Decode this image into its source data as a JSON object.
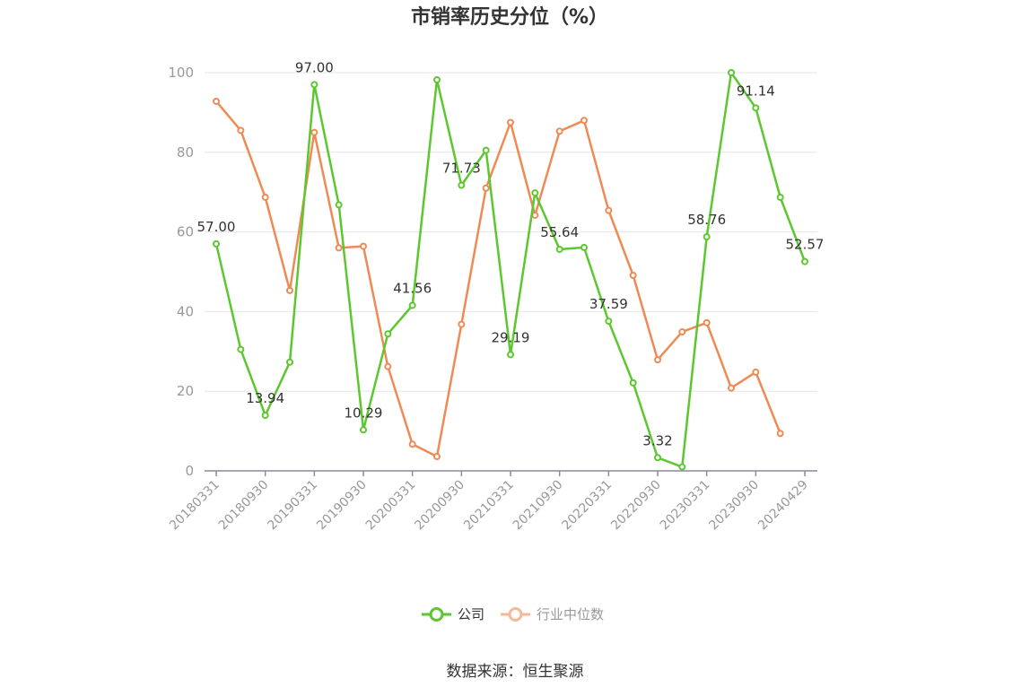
{
  "chart_data": {
    "type": "line",
    "title": "市销率历史分位（%）",
    "source": "数据来源：恒生聚源",
    "ylim": [
      0,
      100
    ],
    "y_ticks": [
      "0",
      "20",
      "40",
      "60",
      "80",
      "100"
    ],
    "x_tick_labels": [
      "20180331",
      "20180930",
      "20190331",
      "20190930",
      "20200331",
      "20200930",
      "20210331",
      "20210930",
      "20220331",
      "20220930",
      "20230331",
      "20230930",
      "20240429"
    ],
    "x": [
      "20180331",
      "20180630",
      "20180930",
      "20181231",
      "20190331",
      "20190630",
      "20190930",
      "20191231",
      "20200331",
      "20200630",
      "20200930",
      "20201231",
      "20210331",
      "20210630",
      "20210930",
      "20211231",
      "20220331",
      "20220630",
      "20220930",
      "20221231",
      "20230331",
      "20230630",
      "20230930",
      "20231231",
      "20240429"
    ],
    "series": [
      {
        "name": "公司",
        "color": "#5cc72f",
        "values": [
          57.0,
          30.5,
          13.94,
          27.3,
          97.0,
          66.8,
          10.29,
          34.4,
          41.56,
          98.2,
          71.73,
          80.5,
          29.19,
          69.8,
          55.64,
          56.1,
          37.59,
          22.1,
          3.32,
          1.0,
          58.76,
          100.0,
          91.14,
          68.7,
          52.57
        ]
      },
      {
        "name": "行业中位数",
        "color": "#f08a55",
        "values": [
          92.8,
          85.5,
          68.7,
          45.3,
          85.0,
          56.0,
          56.4,
          26.2,
          6.7,
          3.6,
          36.8,
          71.0,
          87.5,
          64.2,
          85.3,
          88.0,
          65.4,
          49.1,
          27.9,
          34.9,
          37.2,
          20.8,
          24.8,
          9.4,
          null
        ]
      }
    ],
    "data_labels": [
      {
        "index": 0,
        "text": "57.00"
      },
      {
        "index": 2,
        "text": "13.94"
      },
      {
        "index": 4,
        "text": "97.00"
      },
      {
        "index": 6,
        "text": "10.29"
      },
      {
        "index": 8,
        "text": "41.56"
      },
      {
        "index": 10,
        "text": "71.73"
      },
      {
        "index": 12,
        "text": "29.19"
      },
      {
        "index": 14,
        "text": "55.64"
      },
      {
        "index": 16,
        "text": "37.59"
      },
      {
        "index": 18,
        "text": "3.32"
      },
      {
        "index": 20,
        "text": "58.76"
      },
      {
        "index": 22,
        "text": "91.14"
      },
      {
        "index": 24,
        "text": "52.57"
      }
    ],
    "legend": {
      "position": "bottom",
      "items": [
        "公司",
        "行业中位数"
      ]
    },
    "grid": true
  }
}
